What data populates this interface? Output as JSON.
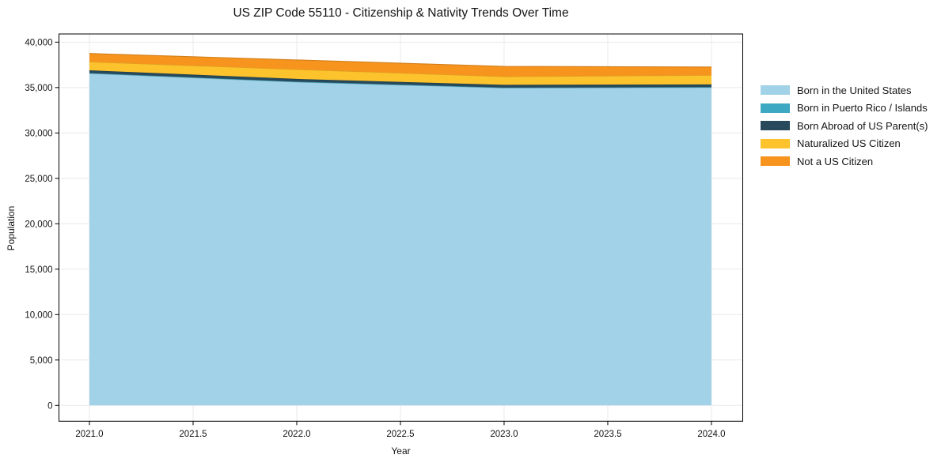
{
  "chart_data": {
    "type": "area",
    "stacked": true,
    "title": "US ZIP Code 55110 - Citizenship & Nativity Trends Over Time",
    "xlabel": "Year",
    "ylabel": "Population",
    "x": [
      2021,
      2022,
      2023,
      2024
    ],
    "series": [
      {
        "name": "Born in the United States",
        "color": "#A1D2E7",
        "values": [
          36550,
          35600,
          34950,
          35000
        ]
      },
      {
        "name": "Born in Puerto Rico / Islands",
        "color": "#3CA8C2",
        "values": [
          50,
          50,
          50,
          50
        ]
      },
      {
        "name": "Born Abroad of US Parent(s)",
        "color": "#27495B",
        "values": [
          300,
          300,
          300,
          300
        ]
      },
      {
        "name": "Naturalized US Citizen",
        "color": "#FCC32D",
        "values": [
          930,
          1040,
          900,
          1010
        ]
      },
      {
        "name": "Not a US Citizen",
        "color": "#F7941E",
        "values": [
          920,
          1050,
          1130,
          900
        ]
      }
    ],
    "x_ticks": [
      2021.0,
      2021.5,
      2022.0,
      2022.5,
      2023.0,
      2023.5,
      2024.0
    ],
    "y_ticks": [
      0,
      5000,
      10000,
      15000,
      20000,
      25000,
      30000,
      35000,
      40000
    ],
    "xlim": [
      2020.853,
      2024.151
    ],
    "ylim": [
      -1740,
      40900
    ],
    "grid": true,
    "grid_color": "#eaeaea",
    "axis_color": "#000000",
    "legend_position": "right"
  }
}
